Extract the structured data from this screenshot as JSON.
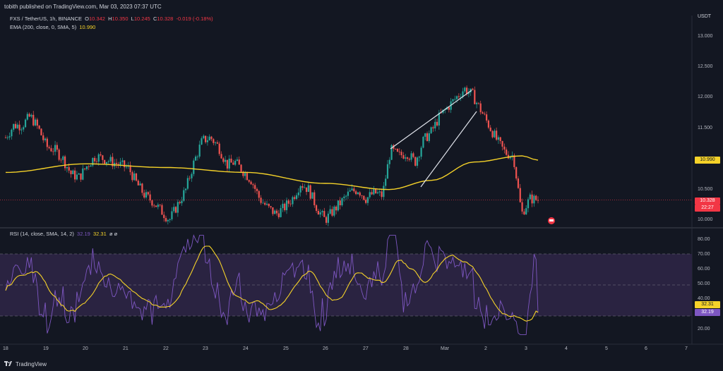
{
  "header": {
    "published": "tobith published on TradingView.com, Mar 03, 2023 07:37 UTC",
    "currency": "USDT"
  },
  "legend": {
    "symbol": "FXS / TetherUS, 1h, BINANCE",
    "o_label": "O",
    "o_value": "10.342",
    "h_label": "H",
    "h_value": "10.350",
    "l_label": "L",
    "l_value": "10.245",
    "c_label": "C",
    "c_value": "10.328",
    "change": "-0.019 (-0.18%)",
    "ema_label": "EMA (200, close, 0, SMA, 5)",
    "ema_value": "10.990",
    "rsi_label": "RSI (14, close, SMA, 14, 2)",
    "rsi_value1": "32.19",
    "rsi_value2": "32.31",
    "rsi_extra": "ø ø"
  },
  "price_axis": {
    "ticks": [
      "13.000",
      "12.500",
      "12.000",
      "11.500",
      "11.000",
      "10.500",
      "10.000"
    ],
    "ema_tag": "10.990",
    "last_price_tag": "10.328",
    "countdown": "22:27"
  },
  "rsi_axis": {
    "ticks": [
      "80.00",
      "70.00",
      "60.00",
      "50.00",
      "40.00",
      "30.00",
      "20.00"
    ],
    "tag_sma": "32.31",
    "tag_rsi": "32.19"
  },
  "time_axis": {
    "ticks": [
      "18",
      "19",
      "20",
      "21",
      "22",
      "23",
      "24",
      "25",
      "26",
      "27",
      "28",
      "Mar",
      "2",
      "3",
      "4",
      "5",
      "6",
      "7"
    ]
  },
  "footer": {
    "brand": "TradingView"
  },
  "colors": {
    "bg": "#131722",
    "up": "#26a69a",
    "down": "#ef5350",
    "ema": "#f5d229",
    "rsi": "#7e57c2",
    "rsi_band": "#2a2341"
  },
  "chart_data": {
    "type": "candlestick",
    "symbol": "FXS / TetherUS",
    "interval": "1h",
    "ylim": [
      9.85,
      13.2
    ],
    "last_close": 10.328,
    "ema_last": 10.99,
    "rsi_last": 32.19,
    "rsi_sma_last": 32.31,
    "rsi_levels": [
      70,
      50,
      30
    ],
    "close_approx": [
      11.35,
      11.55,
      11.55,
      11.7,
      11.5,
      11.2,
      11.15,
      11.0,
      10.75,
      10.7,
      10.9,
      11.05,
      11.0,
      10.95,
      10.9,
      10.85,
      10.6,
      10.4,
      10.3,
      10.15,
      10.0,
      10.25,
      10.5,
      10.95,
      11.3,
      11.35,
      11.2,
      10.9,
      10.95,
      10.8,
      10.65,
      10.35,
      10.2,
      10.1,
      10.2,
      10.35,
      10.6,
      10.5,
      10.2,
      10.0,
      10.15,
      10.3,
      10.45,
      10.5,
      10.35,
      10.45,
      10.4,
      11.15,
      11.05,
      11.1,
      10.95,
      11.3,
      11.45,
      11.7,
      11.85,
      12.0,
      12.15,
      12.05,
      11.8,
      11.55,
      11.3,
      11.1,
      11.05,
      10.1,
      10.35,
      10.33
    ]
  }
}
